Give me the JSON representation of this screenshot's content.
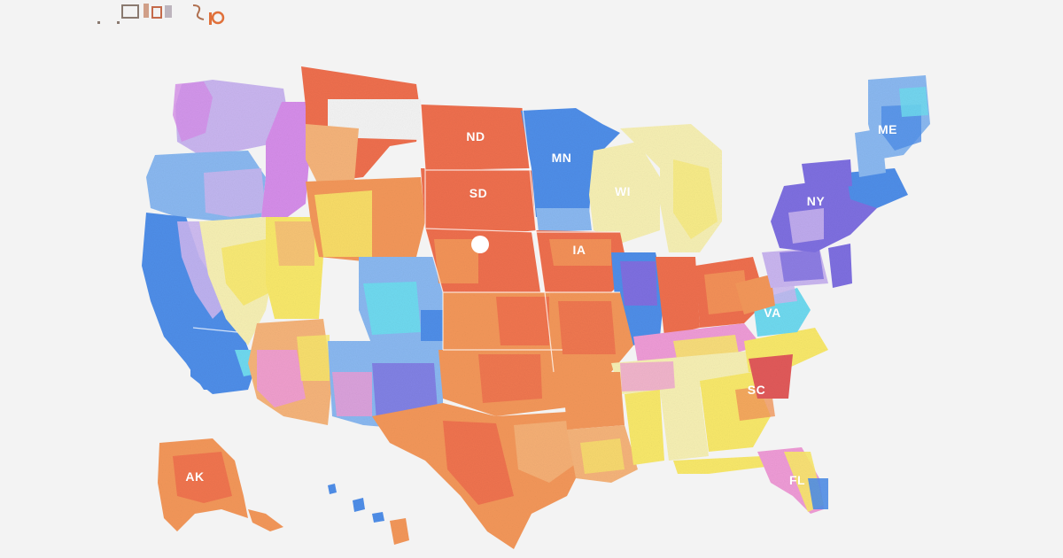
{
  "map": {
    "background": "#f3f3f3",
    "palette": {
      "red_orange": "#ee6f4e",
      "orange": "#f3975a",
      "peach": "#f5b37a",
      "yellow": "#f8e86a",
      "pale_yellow": "#f6efb3",
      "blue": "#4f8ee8",
      "light_blue": "#8ab8f0",
      "cyan": "#6fd9ef",
      "purple": "#7e6fe0",
      "lavender": "#c9b5ef",
      "pink": "#ee9bd6",
      "magenta": "#d58de9",
      "deep_red": "#e15a5a"
    },
    "state_labels": [
      {
        "abbr": "ND",
        "color": "red_orange"
      },
      {
        "abbr": "MN",
        "color": "blue"
      },
      {
        "abbr": "SD",
        "color": "red_orange"
      },
      {
        "abbr": "WI",
        "color": "pale_yellow"
      },
      {
        "abbr": "IA",
        "color": "red_orange"
      },
      {
        "abbr": "NY",
        "color": "purple"
      },
      {
        "abbr": "ME",
        "color": "light_blue"
      },
      {
        "abbr": "VA",
        "color": "cyan"
      },
      {
        "abbr": "SC",
        "color": "deep_red"
      },
      {
        "abbr": "AK",
        "color": "orange"
      },
      {
        "abbr": "FL",
        "color": "pink"
      }
    ]
  }
}
